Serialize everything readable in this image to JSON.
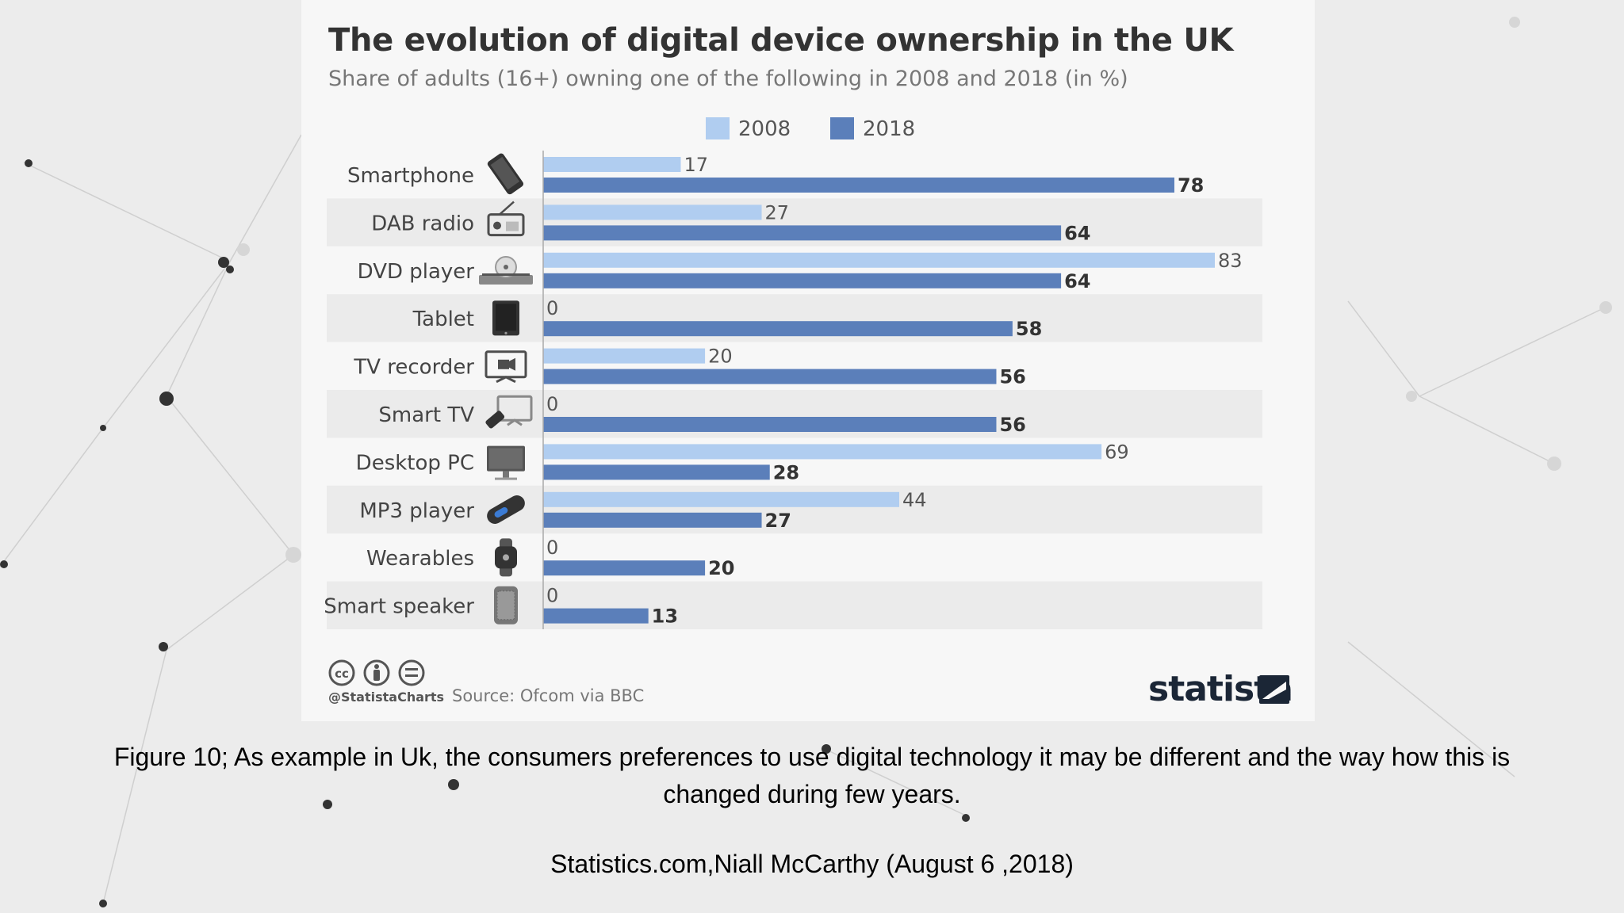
{
  "chart_data": {
    "type": "bar",
    "orientation": "horizontal",
    "title": "The evolution of digital device ownership in the UK",
    "subtitle": "Share of adults (16+) owning one of the following in 2008 and 2018 (in %)",
    "categories": [
      "Smartphone",
      "DAB radio",
      "DVD player",
      "Tablet",
      "TV recorder",
      "Smart TV",
      "Desktop PC",
      "MP3 player",
      "Wearables",
      "Smart speaker"
    ],
    "series": [
      {
        "name": "2008",
        "color": "#b0cdf0",
        "values": [
          17,
          27,
          83,
          0,
          20,
          0,
          69,
          44,
          0,
          0
        ]
      },
      {
        "name": "2018",
        "color": "#5b7fba",
        "values": [
          78,
          64,
          64,
          58,
          56,
          56,
          28,
          27,
          20,
          13
        ]
      }
    ],
    "icons": [
      "smartphone-icon",
      "radio-icon",
      "dvd-player-icon",
      "tablet-icon",
      "tv-recorder-icon",
      "smart-tv-icon",
      "desktop-pc-icon",
      "mp3-player-icon",
      "wearable-icon",
      "smart-speaker-icon"
    ],
    "xlim": [
      0,
      90
    ],
    "legend_position": "top-center",
    "grid": false
  },
  "footer": {
    "handle": "@StatistaCharts",
    "source": "Source: Ofcom via BBC",
    "brand": "statista",
    "license_icons": [
      "cc-icon",
      "attribution-icon",
      "no-derivatives-icon"
    ]
  },
  "caption": "Figure 10; As example in Uk, the consumers preferences to use digital technology it may be different and the way how this is  changed during few years.",
  "credit": "Statistics.com,Niall McCarthy (August 6 ,2018)",
  "colors": {
    "bar2008": "#b0cdf0",
    "bar2018": "#5b7fba",
    "stripe": "#ebebeb",
    "text": "#333333"
  }
}
